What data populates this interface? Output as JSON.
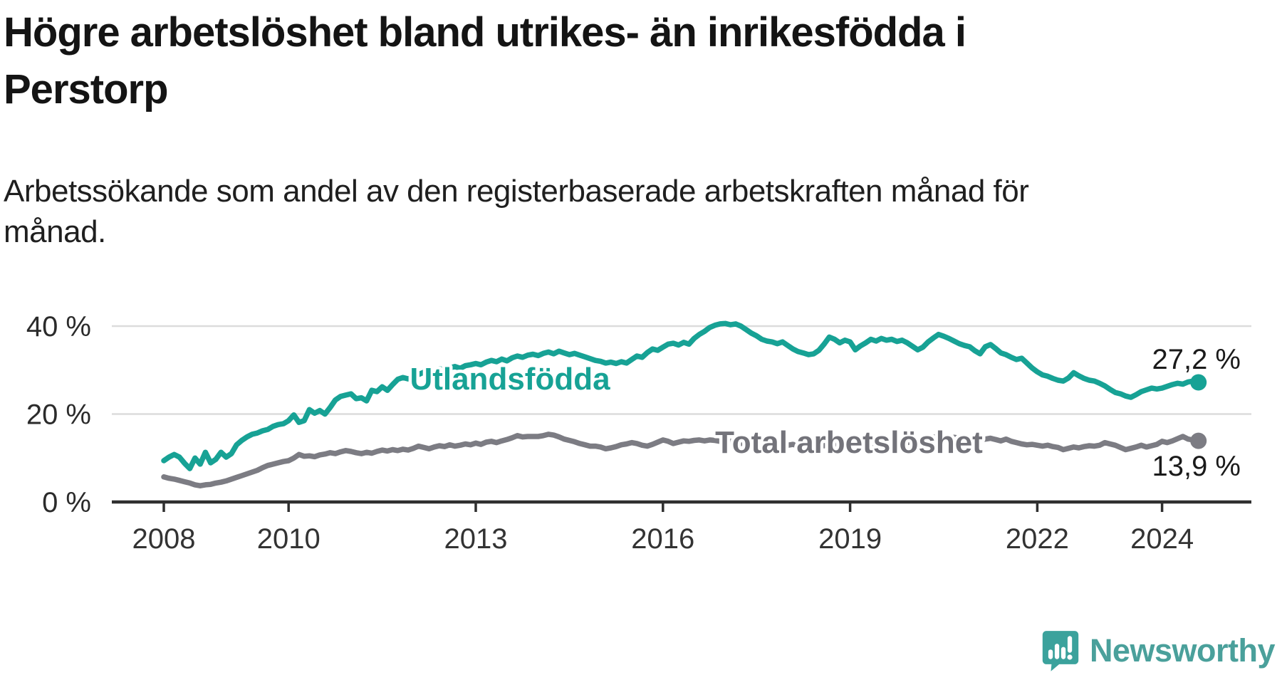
{
  "title": {
    "line1": "Högre arbetslöshet bland utrikes- än inrikesfödda i",
    "line2": "Perstorp"
  },
  "subtitle": {
    "line1": "Arbetssökande som andel av den registerbaserade arbetskraften månad för",
    "line2": "månad."
  },
  "footer": {
    "brand": "Newsworthy",
    "brand_color": "#4AA09B",
    "logo_icon": "newsworthy-speech-bubble-bar-chart-icon",
    "logo_color": "#3BA29C"
  },
  "colors": {
    "background": "#ffffff",
    "gridline": "#dcdcdc",
    "axis": "#2f2f2f",
    "title_text": "#141414",
    "teal_series": "#17A295",
    "gray_series": "#7C7C83",
    "gray_label": "#73737A"
  },
  "chart_data": {
    "type": "line",
    "title": "Högre arbetslöshet bland utrikes- än inrikesfödda i Perstorp",
    "subtitle": "Arbetssökande som andel av den registerbaserade arbetskraften månad för månad.",
    "unit": "%",
    "x_start_year": 2008,
    "points_per_year": 12,
    "x_tick_years": [
      2008,
      2010,
      2013,
      2016,
      2019,
      2022,
      2024
    ],
    "x_tick_labels": [
      "2008",
      "2010",
      "2013",
      "2016",
      "2019",
      "2022",
      "2024"
    ],
    "y_ticks": [
      {
        "value": 0,
        "label": "0 %"
      },
      {
        "value": 20,
        "label": "20 %"
      },
      {
        "value": 40,
        "label": "40 %"
      }
    ],
    "ylim": [
      0,
      42
    ],
    "grid": "horizontal",
    "legend_position": "inline-labels",
    "series": [
      {
        "name": "Utlandsfödda",
        "color": "#17A295",
        "end_label": "27,2 %",
        "end_value": 27.2,
        "values": [
          9.4,
          10.2,
          10.8,
          10.2,
          8.8,
          7.6,
          10.0,
          8.6,
          11.3,
          8.9,
          9.7,
          11.3,
          10.2,
          11.0,
          13.0,
          14.0,
          14.8,
          15.4,
          15.7,
          16.2,
          16.5,
          17.2,
          17.6,
          17.8,
          18.5,
          19.8,
          18.1,
          18.5,
          21.0,
          20.2,
          20.8,
          20.0,
          21.5,
          23.2,
          24.0,
          24.3,
          24.6,
          23.5,
          23.7,
          23.0,
          25.4,
          25.1,
          26.2,
          25.4,
          26.7,
          27.9,
          28.3,
          28.0,
          28.4,
          29.0,
          29.5,
          29.2,
          29.8,
          30.3,
          30.0,
          30.5,
          30.8,
          30.4,
          31.0,
          31.2,
          31.5,
          31.2,
          31.8,
          32.2,
          31.9,
          32.5,
          32.1,
          32.8,
          33.2,
          32.9,
          33.4,
          33.6,
          33.3,
          33.8,
          34.1,
          33.7,
          34.3,
          33.9,
          33.5,
          33.8,
          33.4,
          33.0,
          32.6,
          32.2,
          32.0,
          31.6,
          31.8,
          31.5,
          31.9,
          31.6,
          32.4,
          33.2,
          32.9,
          34.0,
          34.8,
          34.5,
          35.2,
          35.9,
          36.1,
          35.7,
          36.3,
          35.9,
          37.2,
          38.1,
          38.8,
          39.7,
          40.2,
          40.5,
          40.6,
          40.3,
          40.5,
          40.0,
          39.2,
          38.4,
          37.8,
          37.0,
          36.6,
          36.4,
          36.0,
          36.4,
          35.6,
          34.8,
          34.2,
          33.9,
          33.5,
          33.7,
          34.5,
          35.9,
          37.5,
          37.0,
          36.2,
          36.8,
          36.4,
          34.6,
          35.5,
          36.2,
          37.0,
          36.6,
          37.2,
          36.8,
          37.0,
          36.5,
          36.8,
          36.2,
          35.4,
          34.6,
          35.2,
          36.4,
          37.3,
          38.1,
          37.7,
          37.2,
          36.6,
          36.0,
          35.6,
          35.3,
          34.4,
          33.7,
          35.3,
          35.8,
          34.9,
          33.9,
          33.5,
          32.9,
          32.4,
          32.7,
          31.6,
          30.5,
          29.6,
          28.9,
          28.6,
          28.1,
          27.7,
          27.5,
          28.2,
          29.4,
          28.7,
          28.1,
          27.7,
          27.5,
          27.0,
          26.4,
          25.6,
          24.9,
          24.6,
          24.1,
          23.8,
          24.4,
          25.1,
          25.5,
          25.9,
          25.7,
          25.9,
          26.3,
          26.7,
          27.0,
          26.8,
          27.3,
          27.5,
          27.2
        ]
      },
      {
        "name": "Total arbetslöshet",
        "color": "#7C7C83",
        "end_label": "13,9 %",
        "end_value": 13.9,
        "values": [
          5.7,
          5.4,
          5.2,
          4.9,
          4.6,
          4.3,
          3.9,
          3.7,
          3.9,
          4.0,
          4.3,
          4.5,
          4.8,
          5.2,
          5.6,
          6.0,
          6.4,
          6.8,
          7.2,
          7.8,
          8.3,
          8.6,
          8.9,
          9.2,
          9.4,
          10.0,
          10.8,
          10.4,
          10.5,
          10.3,
          10.7,
          10.9,
          11.2,
          11.0,
          11.4,
          11.7,
          11.5,
          11.2,
          11.0,
          11.3,
          11.1,
          11.5,
          11.8,
          11.6,
          11.9,
          11.7,
          12.0,
          11.8,
          12.2,
          12.7,
          12.4,
          12.1,
          12.5,
          12.8,
          12.6,
          13.0,
          12.7,
          12.9,
          13.2,
          13.0,
          13.4,
          13.1,
          13.6,
          13.8,
          13.5,
          13.9,
          14.2,
          14.6,
          15.1,
          14.8,
          14.9,
          14.9,
          14.9,
          15.1,
          15.4,
          15.2,
          14.8,
          14.3,
          14.0,
          13.7,
          13.3,
          13.0,
          12.7,
          12.7,
          12.5,
          12.1,
          12.3,
          12.6,
          13.0,
          13.2,
          13.5,
          13.3,
          12.9,
          12.7,
          13.1,
          13.6,
          14.1,
          13.8,
          13.3,
          13.6,
          13.9,
          13.8,
          14.0,
          14.1,
          13.9,
          14.1,
          14.0,
          13.8,
          13.6,
          13.8,
          13.5,
          13.3,
          13.6,
          13.4,
          13.1,
          13.3,
          13.5,
          13.2,
          13.4,
          13.1,
          12.9,
          13.1,
          12.8,
          12.6,
          12.9,
          12.7,
          13.0,
          12.8,
          13.1,
          12.9,
          13.2,
          13.0,
          13.2,
          13.0,
          13.3,
          13.1,
          13.4,
          13.2,
          13.5,
          13.3,
          13.6,
          13.4,
          13.7,
          13.5,
          13.8,
          13.6,
          14.0,
          14.4,
          14.7,
          14.9,
          14.6,
          14.4,
          14.7,
          14.5,
          14.3,
          14.5,
          14.4,
          14.6,
          14.3,
          14.5,
          14.2,
          13.9,
          14.3,
          13.8,
          13.5,
          13.2,
          13.0,
          13.1,
          12.9,
          12.7,
          12.9,
          12.6,
          12.4,
          11.9,
          12.2,
          12.5,
          12.3,
          12.6,
          12.8,
          12.7,
          12.9,
          13.5,
          13.2,
          12.9,
          12.4,
          11.9,
          12.2,
          12.5,
          12.9,
          12.5,
          12.8,
          13.1,
          13.8,
          13.5,
          13.9,
          14.4,
          14.9,
          14.3,
          14.1,
          13.9
        ]
      }
    ]
  }
}
